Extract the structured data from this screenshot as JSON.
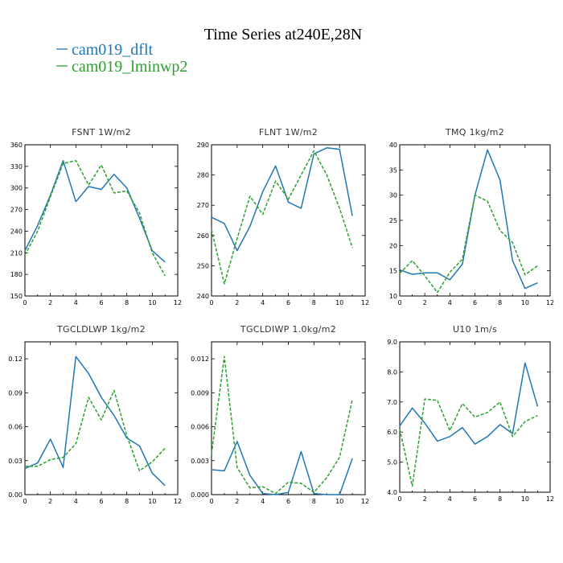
{
  "figure": {
    "title": "Time Series at240E,28N",
    "legend": [
      {
        "label": "cam019_dflt",
        "color": "#1f77b4",
        "dash": "solid"
      },
      {
        "label": "cam019_lminwp2",
        "color": "#2ca02c",
        "dash": "dashed"
      }
    ]
  },
  "chart_data": [
    {
      "type": "line",
      "title": "FSNT   1W/m2",
      "xlim": [
        0,
        12
      ],
      "xticks": [
        0,
        2,
        4,
        6,
        8,
        10,
        12
      ],
      "xtick_labels": [
        "0",
        "2",
        "4",
        "6",
        "8",
        "10",
        "12"
      ],
      "ylim": [
        150,
        360
      ],
      "yticks": [
        150,
        180,
        210,
        240,
        270,
        300,
        330,
        360
      ],
      "ytick_labels": [
        "150",
        "180",
        "210",
        "240",
        "270",
        "300",
        "330",
        "360"
      ],
      "x": [
        0,
        1,
        2,
        3,
        4,
        5,
        6,
        7,
        8,
        9,
        10,
        11
      ],
      "series": [
        {
          "name": "cam019_dflt",
          "values": [
            213,
            248,
            290,
            338,
            281,
            302,
            298,
            319,
            300,
            258,
            213,
            197
          ]
        },
        {
          "name": "cam019_lminwp2",
          "values": [
            207,
            240,
            288,
            334,
            338,
            304,
            332,
            293,
            296,
            265,
            210,
            178
          ]
        }
      ]
    },
    {
      "type": "line",
      "title": "FLNT   1W/m2",
      "xlim": [
        0,
        12
      ],
      "xticks": [
        0,
        2,
        4,
        6,
        8,
        10,
        12
      ],
      "xtick_labels": [
        "0",
        "2",
        "4",
        "6",
        "8",
        "10",
        "12"
      ],
      "ylim": [
        240,
        290
      ],
      "yticks": [
        240,
        250,
        260,
        270,
        280,
        290
      ],
      "ytick_labels": [
        "240",
        "250",
        "260",
        "270",
        "280",
        "290"
      ],
      "x": [
        0,
        1,
        2,
        3,
        4,
        5,
        6,
        7,
        8,
        9,
        10,
        11
      ],
      "series": [
        {
          "name": "cam019_dflt",
          "values": [
            266,
            264,
            255,
            263,
            274.5,
            283,
            271,
            269,
            287,
            289,
            288.5,
            266.5
          ]
        },
        {
          "name": "cam019_lminwp2",
          "values": [
            262,
            244,
            259,
            273,
            267,
            278,
            272,
            280,
            288,
            280,
            269,
            256
          ]
        }
      ]
    },
    {
      "type": "line",
      "title": "TMQ   1kg/m2",
      "xlim": [
        0,
        12
      ],
      "xticks": [
        0,
        2,
        4,
        6,
        8,
        10,
        12
      ],
      "xtick_labels": [
        "0",
        "2",
        "4",
        "6",
        "8",
        "10",
        "12"
      ],
      "ylim": [
        10,
        40
      ],
      "yticks": [
        10,
        15,
        20,
        25,
        30,
        35,
        40
      ],
      "ytick_labels": [
        "10",
        "15",
        "20",
        "25",
        "30",
        "35",
        "40"
      ],
      "x": [
        0,
        1,
        2,
        3,
        4,
        5,
        6,
        7,
        8,
        9,
        10,
        11
      ],
      "series": [
        {
          "name": "cam019_dflt",
          "values": [
            15.2,
            14.3,
            14.6,
            14.6,
            13.2,
            16.3,
            30,
            39,
            33,
            17,
            11.5,
            12.6
          ]
        },
        {
          "name": "cam019_lminwp2",
          "values": [
            14.5,
            17,
            14,
            10.7,
            14.7,
            17.3,
            30,
            28.8,
            23,
            20.6,
            14.2,
            16
          ]
        }
      ]
    },
    {
      "type": "line",
      "title": "TGCLDLWP   1kg/m2",
      "xlim": [
        0,
        12
      ],
      "xticks": [
        0,
        2,
        4,
        6,
        8,
        10,
        12
      ],
      "xtick_labels": [
        "0",
        "2",
        "4",
        "6",
        "8",
        "10",
        "12"
      ],
      "ylim": [
        0,
        0.135
      ],
      "yticks": [
        0,
        0.03,
        0.06,
        0.09,
        0.12
      ],
      "ytick_labels": [
        "0.00",
        "0.03",
        "0.06",
        "0.09",
        "0.12"
      ],
      "x": [
        0,
        1,
        2,
        3,
        4,
        5,
        6,
        7,
        8,
        9,
        10,
        11
      ],
      "series": [
        {
          "name": "cam019_dflt",
          "values": [
            0.023,
            0.028,
            0.049,
            0.024,
            0.122,
            0.107,
            0.086,
            0.07,
            0.05,
            0.043,
            0.019,
            0.008
          ]
        },
        {
          "name": "cam019_lminwp2",
          "values": [
            0.025,
            0.025,
            0.031,
            0.033,
            0.045,
            0.086,
            0.066,
            0.092,
            0.052,
            0.021,
            0.029,
            0.041
          ]
        }
      ]
    },
    {
      "type": "line",
      "title": "TGCLDIWP   1.0kg/m2",
      "xlim": [
        0,
        12
      ],
      "xticks": [
        0,
        2,
        4,
        6,
        8,
        10,
        12
      ],
      "xtick_labels": [
        "0",
        "2",
        "4",
        "6",
        "8",
        "10",
        "12"
      ],
      "ylim": [
        0,
        0.0135
      ],
      "yticks": [
        0,
        0.003,
        0.006,
        0.009,
        0.012
      ],
      "ytick_labels": [
        "0.000",
        "0.003",
        "0.006",
        "0.009",
        "0.012"
      ],
      "x": [
        0,
        1,
        2,
        3,
        4,
        5,
        6,
        7,
        8,
        9,
        10,
        11
      ],
      "series": [
        {
          "name": "cam019_dflt",
          "values": [
            0.0022,
            0.0021,
            0.0047,
            0.0017,
            0.0001,
            0,
            0.0002,
            0.0038,
            0.0001,
            0,
            0,
            0.0032
          ]
        },
        {
          "name": "cam019_lminwp2",
          "values": [
            0.0036,
            0.0122,
            0.0024,
            0.0006,
            0.0007,
            0.0001,
            0.0011,
            0.001,
            0.0002,
            0.0015,
            0.0033,
            0.0084
          ]
        }
      ]
    },
    {
      "type": "line",
      "title": "U10   1m/s",
      "xlim": [
        0,
        12
      ],
      "xticks": [
        0,
        2,
        4,
        6,
        8,
        10,
        12
      ],
      "xtick_labels": [
        "0",
        "2",
        "4",
        "6",
        "8",
        "10",
        "12"
      ],
      "ylim": [
        4,
        9
      ],
      "yticks": [
        4,
        5,
        6,
        7,
        8,
        9
      ],
      "ytick_labels": [
        "4.0",
        "5.0",
        "6.0",
        "7.0",
        "8.0",
        "9.0"
      ],
      "x": [
        0,
        1,
        2,
        3,
        4,
        5,
        6,
        7,
        8,
        9,
        10,
        11
      ],
      "series": [
        {
          "name": "cam019_dflt",
          "values": [
            6.2,
            6.8,
            6.3,
            5.7,
            5.85,
            6.15,
            5.6,
            5.85,
            6.25,
            5.95,
            8.3,
            6.85
          ]
        },
        {
          "name": "cam019_lminwp2",
          "values": [
            6.1,
            4.2,
            7.1,
            7.05,
            6.05,
            6.95,
            6.5,
            6.65,
            7.0,
            5.85,
            6.35,
            6.55
          ]
        }
      ]
    }
  ]
}
